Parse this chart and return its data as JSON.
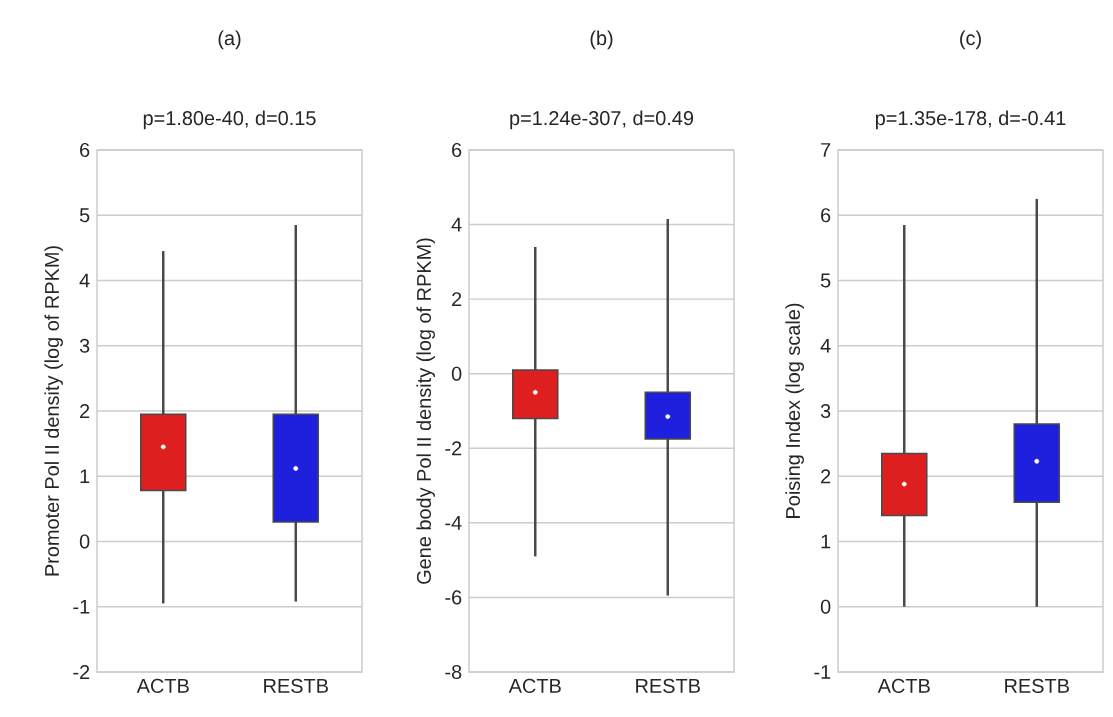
{
  "chart_data": [
    {
      "type": "box",
      "title": "(a)",
      "subtitle": "p=1.80e-40, d=0.15",
      "ylabel": "Promoter Pol II density (log of RPKM)",
      "categories": [
        "ACTB",
        "RESTB"
      ],
      "colors": [
        "#de1f1f",
        "#1f1fde"
      ],
      "ylim": [
        -2,
        6
      ],
      "yticks": [
        -2,
        -1,
        0,
        1,
        2,
        3,
        4,
        5,
        6
      ],
      "grid": "y",
      "boxes": [
        {
          "low": -0.95,
          "q1": 0.78,
          "median": 1.45,
          "q3": 1.95,
          "high": 4.45
        },
        {
          "low": -0.92,
          "q1": 0.3,
          "median": 1.12,
          "q3": 1.95,
          "high": 4.85
        }
      ]
    },
    {
      "type": "box",
      "title": "(b)",
      "subtitle": "p=1.24e-307, d=0.49",
      "ylabel": "Gene body Pol II density (log of RPKM)",
      "categories": [
        "ACTB",
        "RESTB"
      ],
      "colors": [
        "#de1f1f",
        "#1f1fde"
      ],
      "ylim": [
        -8,
        6
      ],
      "yticks": [
        -8,
        -6,
        -4,
        -2,
        0,
        2,
        4,
        6
      ],
      "grid": "y",
      "boxes": [
        {
          "low": -4.9,
          "q1": -1.2,
          "median": -0.5,
          "q3": 0.1,
          "high": 3.4
        },
        {
          "low": -5.95,
          "q1": -1.75,
          "median": -1.15,
          "q3": -0.5,
          "high": 4.15
        }
      ]
    },
    {
      "type": "box",
      "title": "(c)",
      "subtitle": "p=1.35e-178, d=-0.41",
      "ylabel": "Poising Index (log scale)",
      "categories": [
        "ACTB",
        "RESTB"
      ],
      "colors": [
        "#de1f1f",
        "#1f1fde"
      ],
      "ylim": [
        -1,
        7
      ],
      "yticks": [
        -1,
        0,
        1,
        2,
        3,
        4,
        5,
        6,
        7
      ],
      "grid": "y",
      "boxes": [
        {
          "low": 0,
          "q1": 1.4,
          "median": 1.88,
          "q3": 2.35,
          "high": 5.85
        },
        {
          "low": 0,
          "q1": 1.6,
          "median": 2.23,
          "q3": 2.8,
          "high": 6.25
        }
      ]
    }
  ]
}
